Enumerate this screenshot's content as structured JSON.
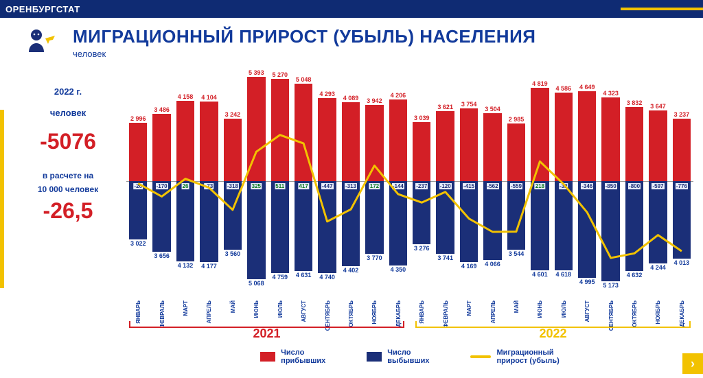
{
  "brand": "ОРЕНБУРГСТАТ",
  "title": "МИГРАЦИОННЫЙ ПРИРОСТ (УБЫЛЬ) НАСЕЛЕНИЯ",
  "subtitle": "человек",
  "side": {
    "year_label": "2022 г.",
    "people_label": "человек",
    "big_value": "-5076",
    "per_label_1": "в расчете на",
    "per_label_2": "10 000 человек",
    "big_value_2": "-26,5"
  },
  "legend": {
    "arrived": "Число\nприбывших",
    "departed": "Число\nвыбывших",
    "net": "Миграционный\nприрост (убыль)"
  },
  "colors": {
    "red": "#d31f26",
    "navy": "#1b2f78",
    "yellow": "#f2c200",
    "title": "#123a9b",
    "bg": "#ffffff",
    "axis": "#999999"
  },
  "chart": {
    "type": "bar+line",
    "axis_position_pct": 50,
    "max_abs": 5600,
    "months": [
      "ЯНВАРЬ",
      "ФЕВРАЛЬ",
      "МАРТ",
      "АПРЕЛЬ",
      "МАЙ",
      "ИЮНЬ",
      "ИЮЛЬ",
      "АВГУСТ",
      "СЕНТЯБРЬ",
      "ОКТЯБРЬ",
      "НОЯБРЬ",
      "ДЕКАБРЬ"
    ],
    "years": [
      "2021",
      "2022"
    ],
    "series_2021": {
      "arrived": [
        2996,
        3486,
        4158,
        4104,
        3242,
        5393,
        5270,
        5048,
        4293,
        4089,
        3942,
        4206
      ],
      "departed": [
        3022,
        3656,
        4132,
        4177,
        3560,
        5068,
        4759,
        4631,
        4740,
        4402,
        3770,
        4350
      ],
      "net": [
        -26,
        -170,
        26,
        -73,
        -318,
        325,
        511,
        417,
        -447,
        -313,
        172,
        -144
      ]
    },
    "series_2022": {
      "arrived": [
        3039,
        3621,
        3754,
        3504,
        2985,
        4819,
        4586,
        4649,
        4323,
        3832,
        3647,
        3237
      ],
      "departed": [
        3276,
        3741,
        4169,
        4066,
        3544,
        4601,
        4618,
        4995,
        5173,
        4632,
        4244,
        4013
      ],
      "net": [
        -237,
        -120,
        -415,
        -562,
        -559,
        218,
        -32,
        -346,
        -850,
        -800,
        -597,
        -776
      ]
    },
    "bar_width_ratio": 0.72,
    "line_width": 3,
    "value_fontsize": 9,
    "xlabel_fontsize": 8,
    "xlabel_rotation_deg": -90
  }
}
